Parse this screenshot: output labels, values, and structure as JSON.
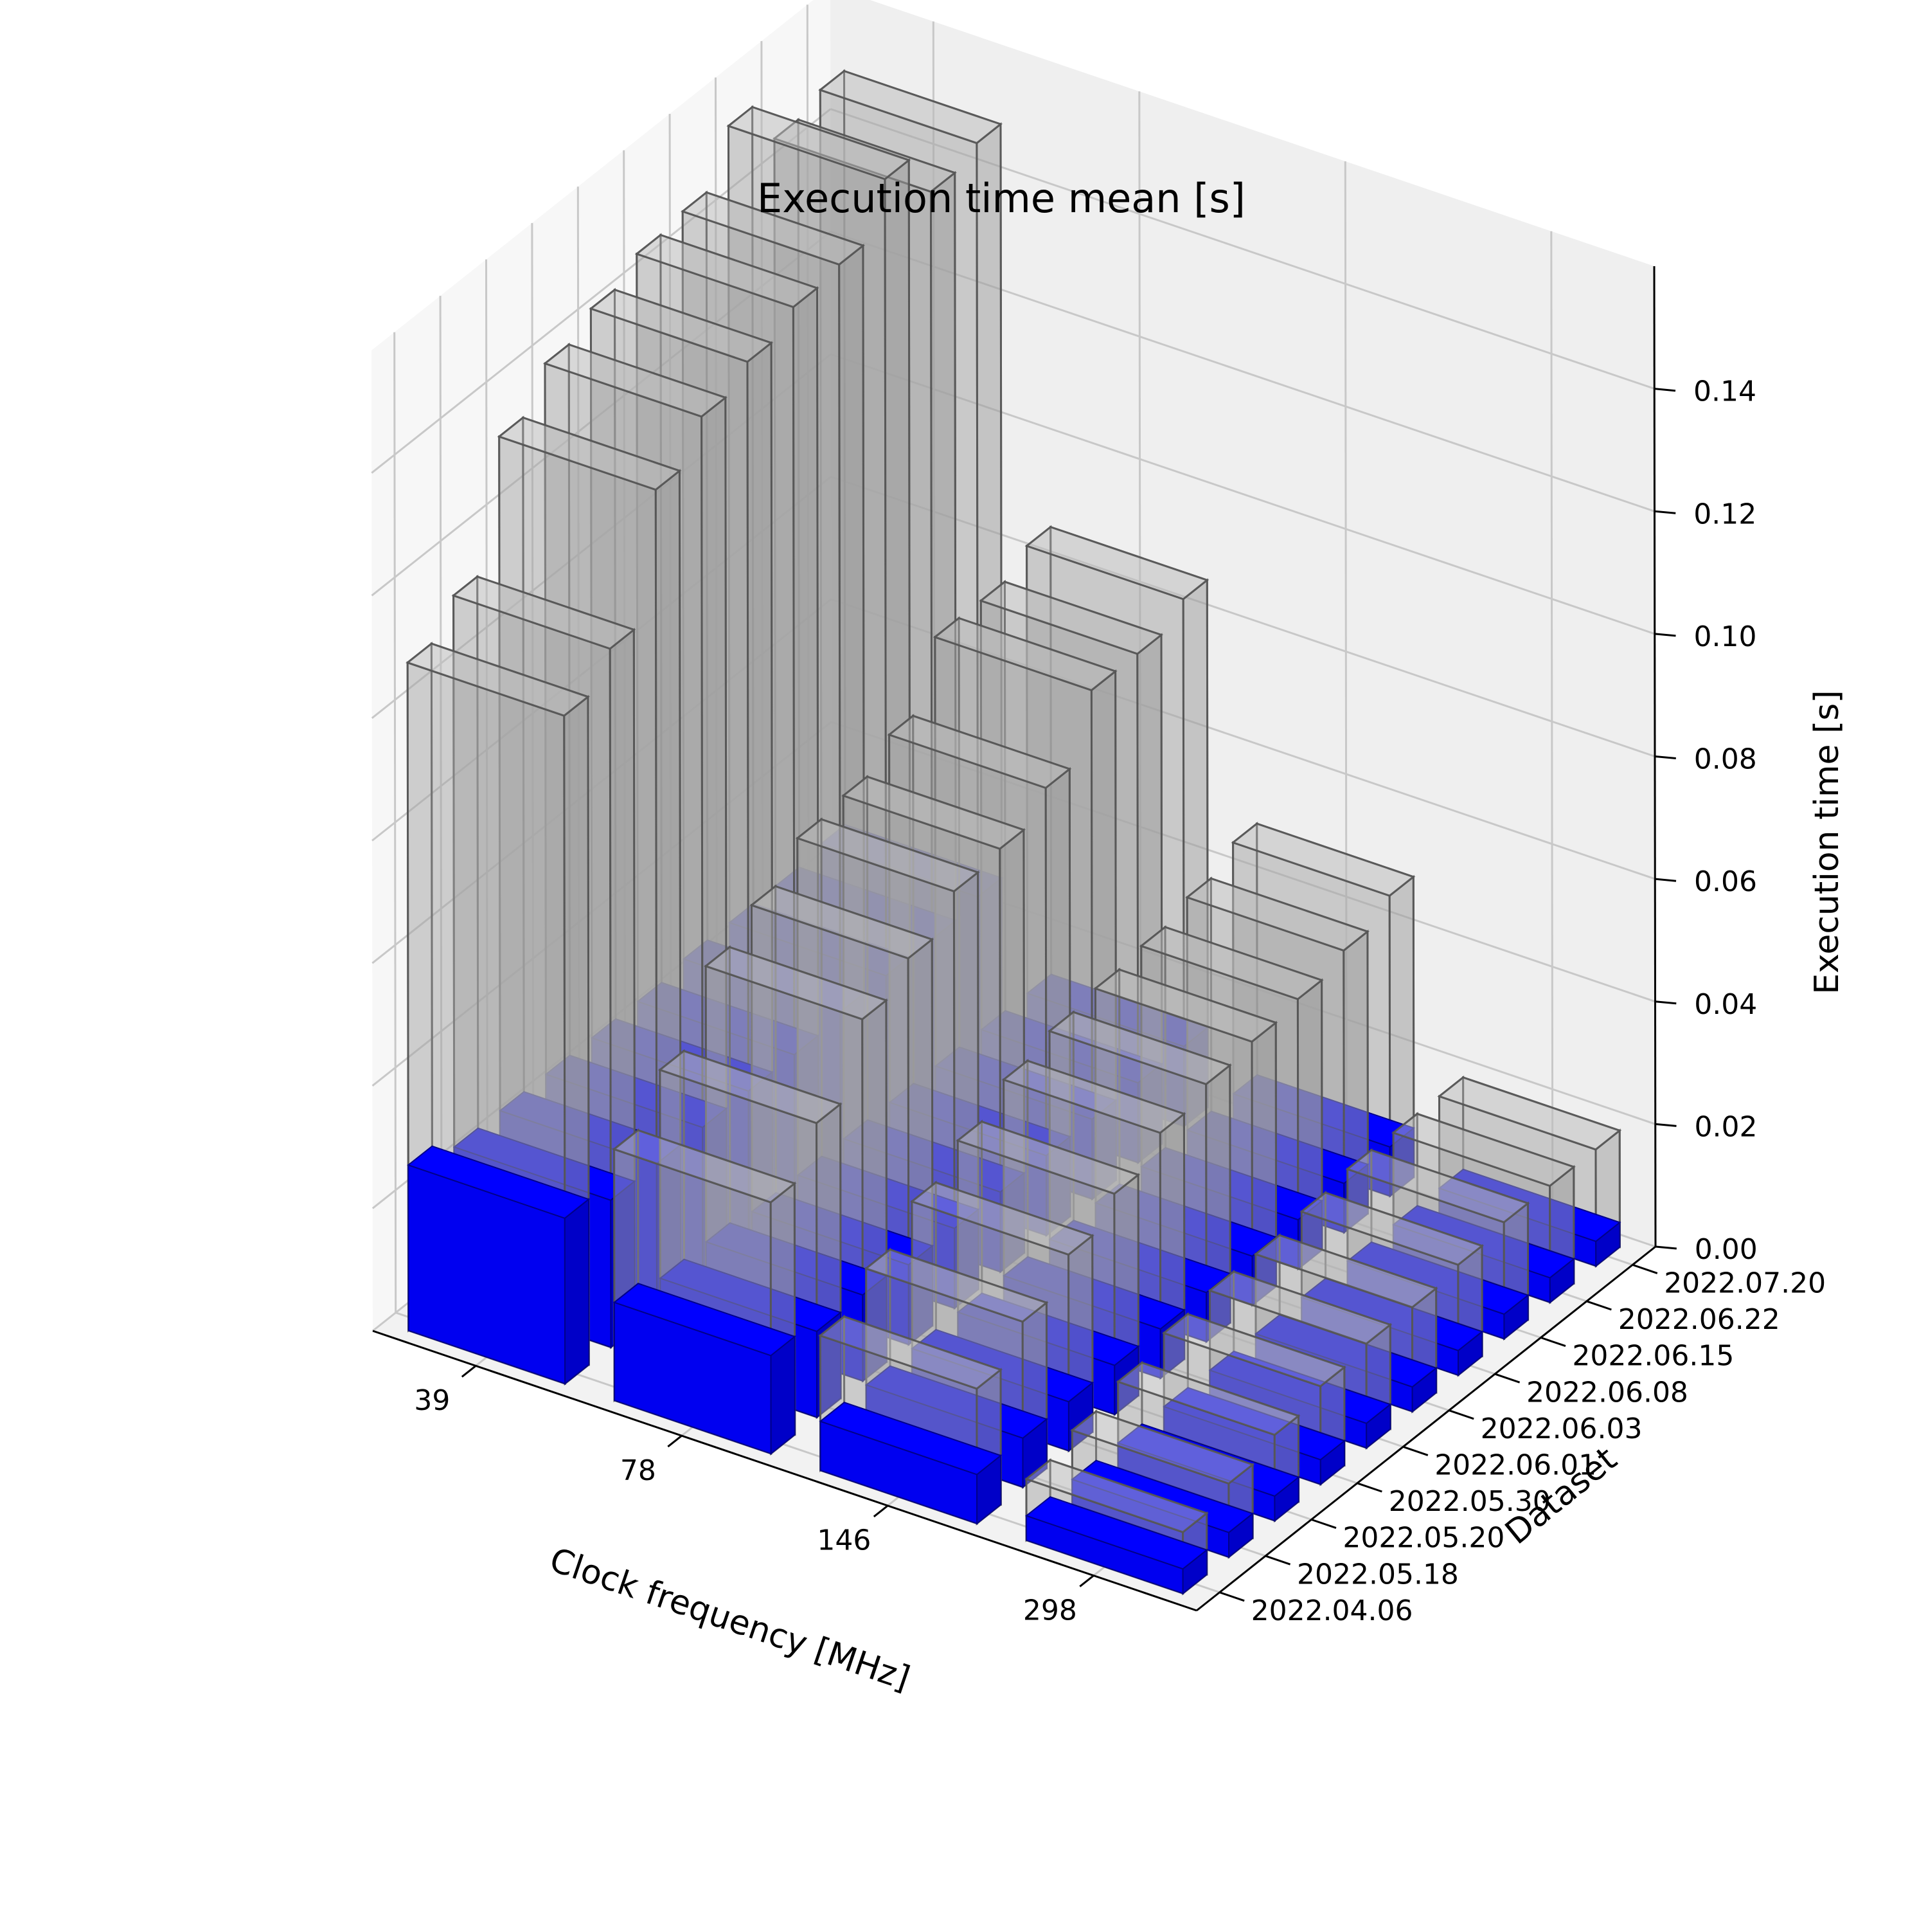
{
  "chart_data": {
    "type": "bar3d",
    "title": "Execution time mean [s]",
    "xlabel": "Clock frequency [MHz]",
    "ylabel": "Dataset",
    "zlabel": "Execution time [s]",
    "x_categories": [
      "39",
      "78",
      "146",
      "298"
    ],
    "y_categories": [
      "2022.04.06",
      "2022.05.18",
      "2022.05.20",
      "2022.05.30",
      "2022.06.01",
      "2022.06.03",
      "2022.06.08",
      "2022.06.15",
      "2022.06.22",
      "2022.07.20"
    ],
    "z_ticks": [
      "0.00",
      "0.02",
      "0.04",
      "0.06",
      "0.08",
      "0.10",
      "0.12",
      "0.14"
    ],
    "zlim": [
      0,
      0.16
    ],
    "grid": true,
    "series": [
      {
        "color": "#b0b0b0",
        "opacity": 0.5,
        "values": [
          [
            0.109,
            0.114,
            0.134,
            0.14,
            0.143,
            0.146,
            0.147,
            0.155,
            0.147,
            0.149
          ],
          [
            0.041,
            0.048,
            0.059,
            0.063,
            0.068,
            0.069,
            0.073,
            0.083,
            0.083,
            0.086
          ],
          [
            0.022,
            0.027,
            0.032,
            0.036,
            0.04,
            0.042,
            0.043,
            0.044,
            0.046,
            0.049
          ],
          [
            0.01,
            0.012,
            0.014,
            0.016,
            0.017,
            0.017,
            0.018,
            0.019,
            0.019,
            0.019
          ]
        ]
      },
      {
        "color": "#0000ff",
        "opacity": 1,
        "values": [
          [
            0.027,
            0.024,
            0.024,
            0.024,
            0.024,
            0.024,
            0.025,
            0.025,
            0.025,
            0.026
          ],
          [
            0.016,
            0.014,
            0.014,
            0.013,
            0.013,
            0.013,
            0.013,
            0.013,
            0.013,
            0.013
          ],
          [
            0.008,
            0.008,
            0.008,
            0.008,
            0.008,
            0.008,
            0.008,
            0.008,
            0.008,
            0.008
          ],
          [
            0.004,
            0.004,
            0.004,
            0.004,
            0.004,
            0.004,
            0.004,
            0.004,
            0.004,
            0.004
          ]
        ]
      }
    ]
  }
}
